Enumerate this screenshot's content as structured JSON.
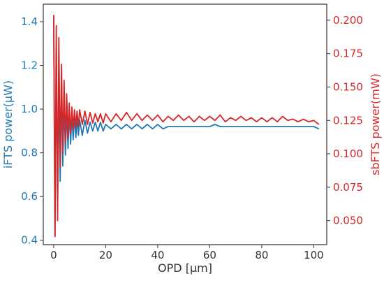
{
  "chart_data": {
    "type": "line",
    "xlabel": "OPD [μm]",
    "xlim": [
      -4,
      105
    ],
    "xticks": [
      0,
      20,
      40,
      60,
      80,
      100
    ],
    "y_left": {
      "label": "iFTS power(μW)",
      "lim": [
        0.38,
        1.48
      ],
      "ticks": [
        "0.4",
        "0.6",
        "0.8",
        "1.0",
        "1.2",
        "1.4"
      ],
      "color": "#1f77b4"
    },
    "y_right": {
      "label": "sbFTS power(mW)",
      "lim": [
        0.032,
        0.212
      ],
      "ticks": [
        "0.050",
        "0.075",
        "0.100",
        "0.125",
        "0.150",
        "0.175",
        "0.200"
      ],
      "color": "#d62728"
    },
    "grid": false,
    "series": [
      {
        "axis": "left",
        "color": "#1f77b4",
        "x": [
          0.0,
          0.5,
          1.0,
          1.5,
          2.0,
          2.5,
          3.0,
          3.5,
          4.0,
          4.5,
          5.0,
          5.5,
          6.0,
          6.5,
          7.0,
          7.5,
          8.0,
          8.5,
          9.0,
          9.5,
          10.0,
          11.0,
          12.0,
          13.0,
          14.0,
          15.0,
          16.0,
          17.0,
          18.0,
          19.0,
          20.0,
          22.0,
          24.0,
          26.0,
          28.0,
          30.0,
          32.0,
          34.0,
          36.0,
          38.0,
          40.0,
          42.0,
          44.0,
          46.0,
          48.0,
          50.0,
          52.0,
          54.0,
          56.0,
          58.0,
          60.0,
          62.0,
          64.0,
          66.0,
          68.0,
          70.0,
          72.0,
          74.0,
          76.0,
          78.0,
          80.0,
          82.0,
          84.0,
          86.0,
          88.0,
          90.0,
          92.0,
          94.0,
          96.0,
          98.0,
          100.0,
          102.0
        ],
        "y": [
          1.42,
          0.42,
          1.28,
          0.55,
          1.17,
          0.67,
          1.1,
          0.74,
          1.05,
          0.79,
          1.01,
          0.82,
          0.99,
          0.84,
          0.98,
          0.86,
          0.97,
          0.87,
          0.96,
          0.88,
          0.95,
          0.88,
          0.95,
          0.89,
          0.94,
          0.9,
          0.94,
          0.9,
          0.94,
          0.9,
          0.93,
          0.91,
          0.93,
          0.91,
          0.93,
          0.91,
          0.93,
          0.91,
          0.93,
          0.91,
          0.93,
          0.91,
          0.92,
          0.92,
          0.92,
          0.92,
          0.92,
          0.92,
          0.92,
          0.92,
          0.92,
          0.93,
          0.92,
          0.92,
          0.92,
          0.92,
          0.92,
          0.92,
          0.92,
          0.92,
          0.92,
          0.92,
          0.92,
          0.92,
          0.92,
          0.92,
          0.92,
          0.92,
          0.92,
          0.92,
          0.92,
          0.91
        ]
      },
      {
        "axis": "right",
        "color": "#d62728",
        "x": [
          0.0,
          0.5,
          1.0,
          1.5,
          2.0,
          2.5,
          3.0,
          3.5,
          4.0,
          4.5,
          5.0,
          5.5,
          6.0,
          6.5,
          7.0,
          7.5,
          8.0,
          8.5,
          9.0,
          9.5,
          10.0,
          11.0,
          12.0,
          13.0,
          14.0,
          15.0,
          16.0,
          17.0,
          18.0,
          19.0,
          20.0,
          22.0,
          24.0,
          26.0,
          28.0,
          30.0,
          32.0,
          34.0,
          36.0,
          38.0,
          40.0,
          42.0,
          44.0,
          46.0,
          48.0,
          50.0,
          52.0,
          54.0,
          56.0,
          58.0,
          60.0,
          62.0,
          64.0,
          66.0,
          68.0,
          70.0,
          72.0,
          74.0,
          76.0,
          78.0,
          80.0,
          82.0,
          84.0,
          86.0,
          88.0,
          90.0,
          92.0,
          94.0,
          96.0,
          98.0,
          100.0,
          102.0
        ],
        "y": [
          0.204,
          0.038,
          0.196,
          0.05,
          0.187,
          0.09,
          0.167,
          0.1,
          0.155,
          0.108,
          0.145,
          0.112,
          0.138,
          0.115,
          0.135,
          0.118,
          0.133,
          0.12,
          0.132,
          0.12,
          0.133,
          0.122,
          0.132,
          0.122,
          0.131,
          0.123,
          0.13,
          0.124,
          0.13,
          0.123,
          0.13,
          0.124,
          0.13,
          0.125,
          0.131,
          0.125,
          0.13,
          0.125,
          0.129,
          0.125,
          0.129,
          0.124,
          0.128,
          0.125,
          0.129,
          0.125,
          0.128,
          0.124,
          0.128,
          0.125,
          0.128,
          0.125,
          0.129,
          0.124,
          0.127,
          0.125,
          0.128,
          0.125,
          0.127,
          0.124,
          0.127,
          0.124,
          0.127,
          0.124,
          0.128,
          0.125,
          0.126,
          0.124,
          0.126,
          0.124,
          0.125,
          0.122
        ]
      }
    ]
  }
}
